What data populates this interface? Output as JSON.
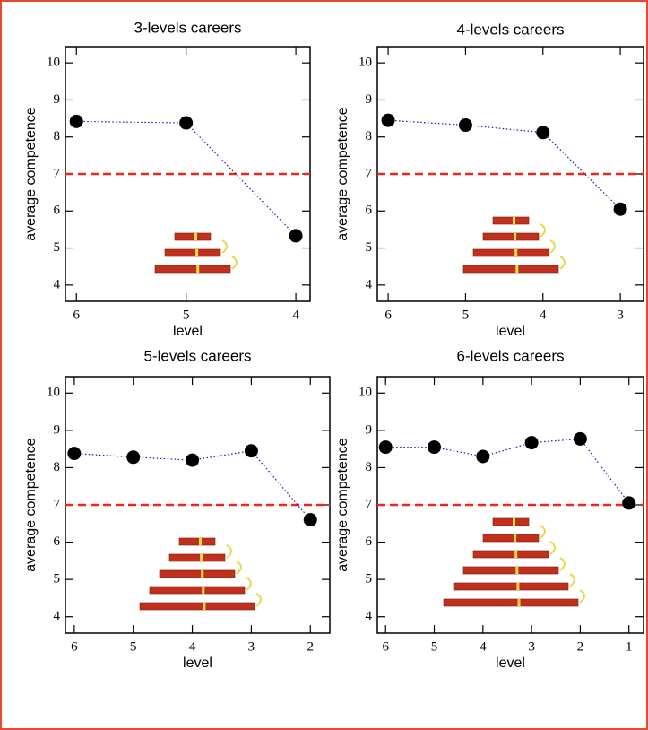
{
  "chart_data": [
    {
      "type": "line",
      "title": "3-levels careers",
      "x_label": "level",
      "y_label": "average competence",
      "x": [
        6,
        5,
        4
      ],
      "values": [
        8.42,
        8.38,
        5.33
      ],
      "color": "#000000",
      "line_color": "#1a1aa6",
      "xlim": [
        6.1,
        3.87
      ],
      "xticks": [
        6,
        5,
        4
      ],
      "ylim": [
        3.56,
        10.44
      ],
      "yticks": [
        4,
        5,
        6,
        7,
        8,
        9,
        10
      ],
      "hline": 7,
      "hline_color": "#e8291c"
    },
    {
      "type": "line",
      "title": "4-levels careers",
      "x_label": "level",
      "y_label": "average competence",
      "x": [
        6,
        5,
        4,
        3
      ],
      "values": [
        8.45,
        8.32,
        8.12,
        6.05
      ],
      "color": "#000000",
      "line_color": "#1a1aa6",
      "xlim": [
        6.14,
        2.7
      ],
      "xticks": [
        6,
        5,
        4,
        3
      ],
      "ylim": [
        3.56,
        10.44
      ],
      "yticks": [
        4,
        5,
        6,
        7,
        8,
        9,
        10
      ],
      "hline": 7,
      "hline_color": "#e8291c"
    },
    {
      "type": "line",
      "title": "5-levels careers",
      "x_label": "level",
      "y_label": "average competence",
      "x": [
        6,
        5,
        4,
        3,
        2
      ],
      "values": [
        8.38,
        8.28,
        8.2,
        8.45,
        6.6
      ],
      "color": "#000000",
      "line_color": "#1a1aa6",
      "xlim": [
        6.15,
        1.67
      ],
      "xticks": [
        6,
        5,
        4,
        3,
        2
      ],
      "ylim": [
        3.56,
        10.44
      ],
      "yticks": [
        4,
        5,
        6,
        7,
        8,
        9,
        10
      ],
      "hline": 7,
      "hline_color": "#e8291c"
    },
    {
      "type": "line",
      "title": "6-levels careers",
      "x_label": "level",
      "y_label": "average competence",
      "x": [
        6,
        5,
        4,
        3,
        2,
        1
      ],
      "values": [
        8.55,
        8.55,
        8.3,
        8.67,
        8.77,
        7.05
      ],
      "color": "#000000",
      "line_color": "#1a1aa6",
      "xlim": [
        6.17,
        0.7
      ],
      "xticks": [
        6,
        5,
        4,
        3,
        2,
        1
      ],
      "ylim": [
        3.56,
        10.44
      ],
      "yticks": [
        4,
        5,
        6,
        7,
        8,
        9,
        10
      ],
      "hline": 7,
      "hline_color": "#e8291c"
    }
  ]
}
